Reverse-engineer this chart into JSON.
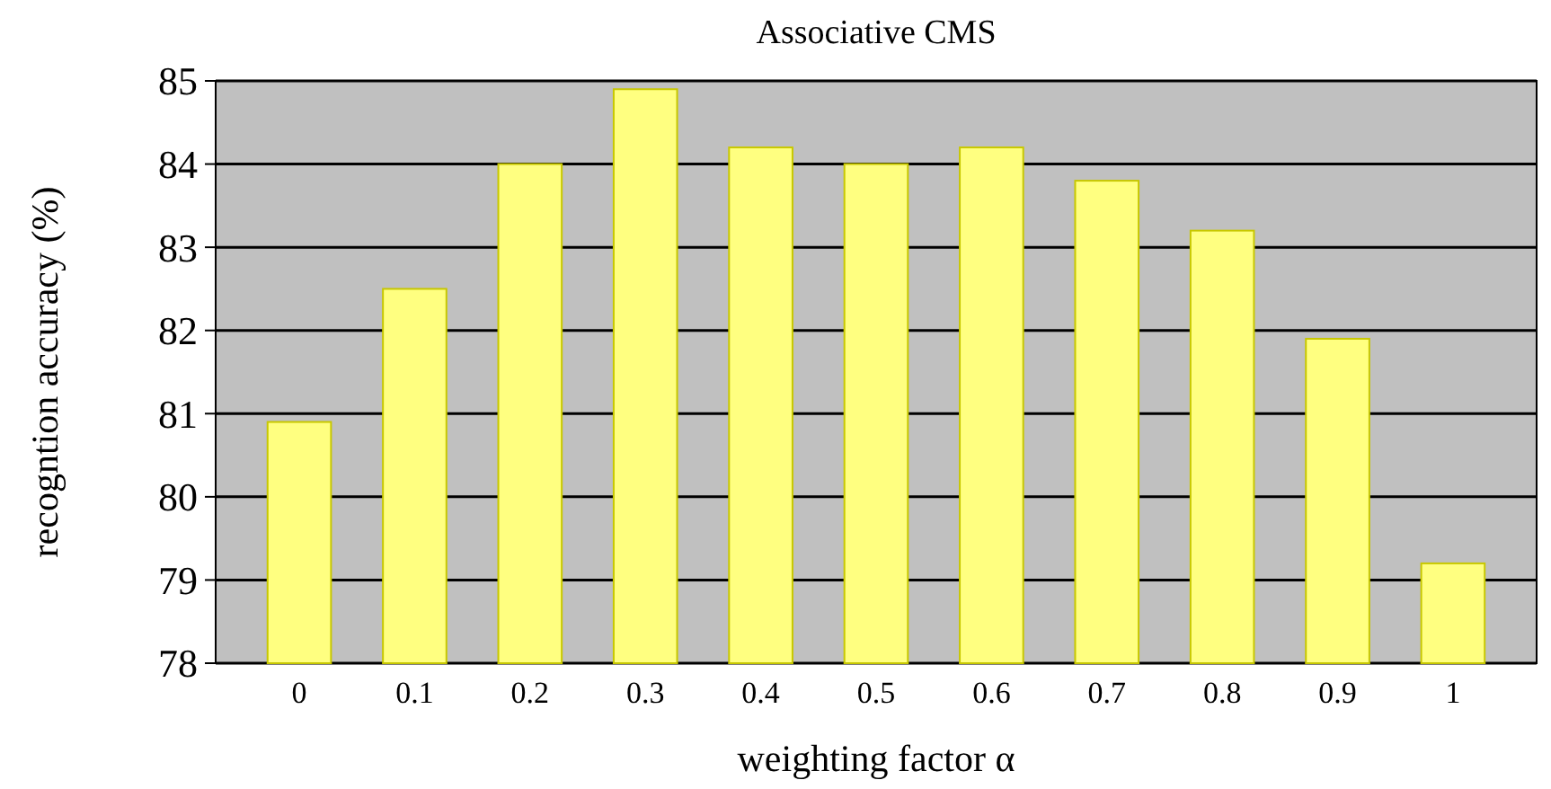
{
  "chart_data": {
    "type": "bar",
    "title": "Associative CMS",
    "xlabel": "weighting factor  α",
    "ylabel": "recogntion accuracy (%)",
    "categories": [
      "0",
      "0.1",
      "0.2",
      "0.3",
      "0.4",
      "0.5",
      "0.6",
      "0.7",
      "0.8",
      "0.9",
      "1"
    ],
    "values": [
      80.9,
      82.5,
      84.0,
      84.9,
      84.2,
      84.0,
      84.2,
      83.8,
      83.2,
      81.9,
      79.2
    ],
    "color": "#ffff80",
    "ylim": [
      78,
      85
    ],
    "yticks": [
      78,
      79,
      80,
      81,
      82,
      83,
      84,
      85
    ],
    "grid": "y"
  }
}
